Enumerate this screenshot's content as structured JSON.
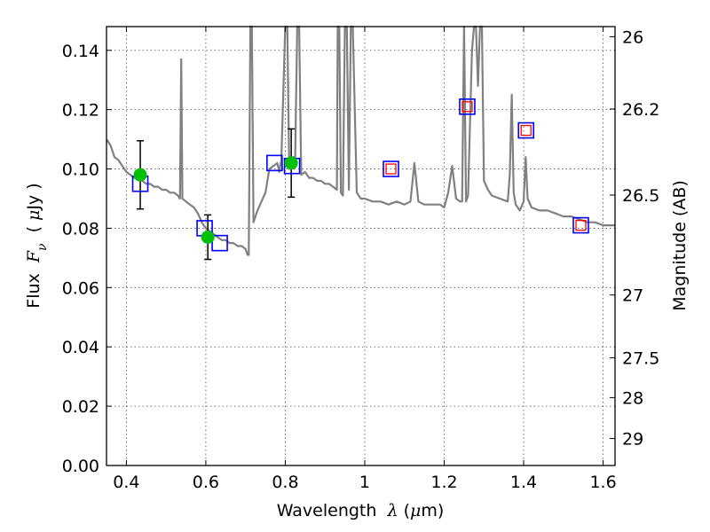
{
  "chart_data": {
    "type": "scatter",
    "xlabel": {
      "pre": "Wavelength  ",
      "sym": "λ",
      "post": " (",
      "mu": "μ",
      "unit": "m)"
    },
    "ylabel": {
      "pre": "Flux  ",
      "sym": "F",
      "sub": "ν",
      "post": "  ( ",
      "mu": "μ",
      "unit": "Jy )"
    },
    "y2label": "Magnitude (AB)",
    "xlim": [
      0.35,
      1.63
    ],
    "ylim": [
      0.0,
      0.148
    ],
    "grid": true,
    "x_ticks": [
      0.4,
      0.6,
      0.8,
      1.0,
      1.2,
      1.4,
      1.6
    ],
    "x_tick_labels": [
      "0.4",
      "0.6",
      "0.8",
      "1",
      "1.2",
      "1.4",
      "1.6"
    ],
    "y_ticks": [
      0.0,
      0.02,
      0.04,
      0.06,
      0.08,
      0.1,
      0.12,
      0.14
    ],
    "y_tick_labels": [
      "0.00",
      "0.02",
      "0.04",
      "0.06",
      "0.08",
      "0.10",
      "0.12",
      "0.14"
    ],
    "y2_ticks": [
      {
        "label": "26",
        "flux": 0.1446
      },
      {
        "label": "26.2",
        "flux": 0.1202
      },
      {
        "label": "26.5",
        "flux": 0.0912
      },
      {
        "label": "27",
        "flux": 0.0575
      },
      {
        "label": "27.5",
        "flux": 0.0363
      },
      {
        "label": "28",
        "flux": 0.0229
      },
      {
        "label": "29",
        "flux": 0.0091
      }
    ],
    "series": [
      {
        "kind": "model-spectrum",
        "color": "#808080",
        "points": [
          [
            0.35,
            0.11
          ],
          [
            0.36,
            0.108
          ],
          [
            0.37,
            0.104
          ],
          [
            0.38,
            0.103
          ],
          [
            0.39,
            0.101
          ],
          [
            0.4,
            0.099
          ],
          [
            0.41,
            0.098
          ],
          [
            0.42,
            0.097
          ],
          [
            0.43,
            0.097
          ],
          [
            0.44,
            0.096
          ],
          [
            0.45,
            0.095
          ],
          [
            0.46,
            0.095
          ],
          [
            0.47,
            0.094
          ],
          [
            0.48,
            0.094
          ],
          [
            0.49,
            0.093
          ],
          [
            0.5,
            0.093
          ],
          [
            0.51,
            0.092
          ],
          [
            0.52,
            0.092
          ],
          [
            0.53,
            0.091
          ],
          [
            0.535,
            0.09
          ],
          [
            0.538,
            0.137
          ],
          [
            0.541,
            0.09
          ],
          [
            0.55,
            0.089
          ],
          [
            0.56,
            0.088
          ],
          [
            0.57,
            0.087
          ],
          [
            0.58,
            0.085
          ],
          [
            0.59,
            0.082
          ],
          [
            0.6,
            0.08
          ],
          [
            0.61,
            0.079
          ],
          [
            0.62,
            0.078
          ],
          [
            0.63,
            0.077
          ],
          [
            0.64,
            0.076
          ],
          [
            0.65,
            0.076
          ],
          [
            0.66,
            0.075
          ],
          [
            0.67,
            0.075
          ],
          [
            0.68,
            0.074
          ],
          [
            0.69,
            0.074
          ],
          [
            0.7,
            0.073
          ],
          [
            0.705,
            0.071
          ],
          [
            0.708,
            0.071
          ],
          [
            0.712,
            0.148
          ],
          [
            0.716,
            0.148
          ],
          [
            0.72,
            0.082
          ],
          [
            0.73,
            0.086
          ],
          [
            0.74,
            0.089
          ],
          [
            0.75,
            0.092
          ],
          [
            0.76,
            0.1
          ],
          [
            0.77,
            0.101
          ],
          [
            0.78,
            0.102
          ],
          [
            0.785,
            0.099
          ],
          [
            0.79,
            0.103
          ],
          [
            0.8,
            0.148
          ],
          [
            0.805,
            0.148
          ],
          [
            0.81,
            0.1
          ],
          [
            0.82,
            0.104
          ],
          [
            0.825,
            0.104
          ],
          [
            0.83,
            0.148
          ],
          [
            0.835,
            0.148
          ],
          [
            0.84,
            0.098
          ],
          [
            0.85,
            0.099
          ],
          [
            0.86,
            0.097
          ],
          [
            0.87,
            0.097
          ],
          [
            0.88,
            0.096
          ],
          [
            0.89,
            0.096
          ],
          [
            0.9,
            0.095
          ],
          [
            0.91,
            0.095
          ],
          [
            0.92,
            0.094
          ],
          [
            0.93,
            0.093
          ],
          [
            0.932,
            0.148
          ],
          [
            0.936,
            0.148
          ],
          [
            0.94,
            0.092
          ],
          [
            0.945,
            0.091
          ],
          [
            0.95,
            0.148
          ],
          [
            0.955,
            0.148
          ],
          [
            0.96,
            0.093
          ],
          [
            0.965,
            0.148
          ],
          [
            0.97,
            0.148
          ],
          [
            0.98,
            0.092
          ],
          [
            0.99,
            0.09
          ],
          [
            1.0,
            0.09
          ],
          [
            1.02,
            0.089
          ],
          [
            1.04,
            0.089
          ],
          [
            1.06,
            0.088
          ],
          [
            1.08,
            0.089
          ],
          [
            1.1,
            0.088
          ],
          [
            1.115,
            0.089
          ],
          [
            1.125,
            0.102
          ],
          [
            1.135,
            0.089
          ],
          [
            1.15,
            0.088
          ],
          [
            1.17,
            0.088
          ],
          [
            1.19,
            0.088
          ],
          [
            1.2,
            0.087
          ],
          [
            1.21,
            0.092
          ],
          [
            1.22,
            0.101
          ],
          [
            1.23,
            0.09
          ],
          [
            1.24,
            0.089
          ],
          [
            1.245,
            0.089
          ],
          [
            1.25,
            0.148
          ],
          [
            1.255,
            0.089
          ],
          [
            1.26,
            0.091
          ],
          [
            1.27,
            0.14
          ],
          [
            1.275,
            0.148
          ],
          [
            1.28,
            0.148
          ],
          [
            1.285,
            0.128
          ],
          [
            1.29,
            0.148
          ],
          [
            1.295,
            0.148
          ],
          [
            1.3,
            0.096
          ],
          [
            1.31,
            0.093
          ],
          [
            1.32,
            0.091
          ],
          [
            1.34,
            0.09
          ],
          [
            1.36,
            0.089
          ],
          [
            1.365,
            0.098
          ],
          [
            1.37,
            0.125
          ],
          [
            1.375,
            0.092
          ],
          [
            1.38,
            0.088
          ],
          [
            1.39,
            0.086
          ],
          [
            1.4,
            0.089
          ],
          [
            1.405,
            0.104
          ],
          [
            1.41,
            0.09
          ],
          [
            1.42,
            0.087
          ],
          [
            1.44,
            0.086
          ],
          [
            1.46,
            0.086
          ],
          [
            1.48,
            0.085
          ],
          [
            1.5,
            0.084
          ],
          [
            1.52,
            0.084
          ],
          [
            1.54,
            0.083
          ],
          [
            1.56,
            0.082
          ],
          [
            1.58,
            0.082
          ],
          [
            1.6,
            0.081
          ],
          [
            1.63,
            0.081
          ]
        ]
      },
      {
        "kind": "observed-photometry",
        "color": "#00c000",
        "points": [
          {
            "x": 0.435,
            "y": 0.098,
            "err": 0.0115
          },
          {
            "x": 0.605,
            "y": 0.077,
            "err": 0.0075
          },
          {
            "x": 0.815,
            "y": 0.102,
            "err": 0.0115
          }
        ]
      },
      {
        "kind": "model-synthetic-photometry",
        "color": "#0000ff",
        "points": [
          [
            0.435,
            0.095
          ],
          [
            0.597,
            0.08
          ],
          [
            0.635,
            0.075
          ],
          [
            0.773,
            0.102
          ],
          [
            0.817,
            0.101
          ],
          [
            1.066,
            0.1
          ],
          [
            1.258,
            0.121
          ],
          [
            1.406,
            0.113
          ],
          [
            1.544,
            0.081
          ]
        ]
      },
      {
        "kind": "upper-limit-markers",
        "color": "#ff0000",
        "points": [
          [
            1.066,
            0.1
          ],
          [
            1.258,
            0.121
          ],
          [
            1.406,
            0.113
          ],
          [
            1.544,
            0.081
          ]
        ]
      }
    ]
  }
}
